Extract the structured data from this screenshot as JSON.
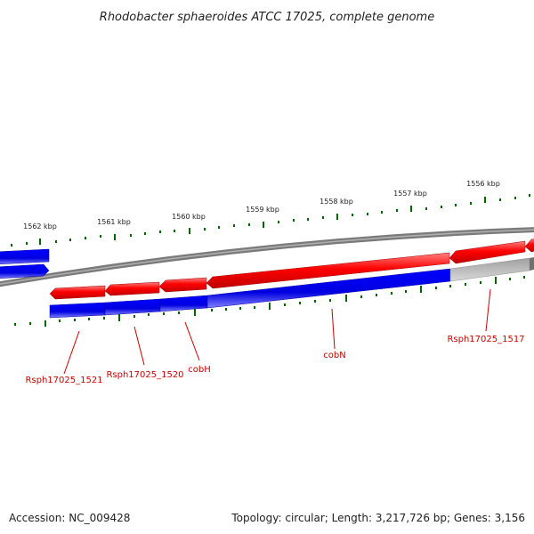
{
  "title": "Rhodobacter sphaeroides ATCC 17025, complete genome",
  "footer": {
    "accession": "Accession: NC_009428",
    "summary": "Topology: circular; Length: 3,217,726 bp; Genes: 3,156"
  },
  "scale": {
    "ticks": [
      {
        "label": "1562 kbp"
      },
      {
        "label": "1561 kbp"
      },
      {
        "label": "1560 kbp"
      },
      {
        "label": "1559 kbp"
      },
      {
        "label": "1558 kbp"
      },
      {
        "label": "1557 kbp"
      },
      {
        "label": "1556 kbp"
      }
    ]
  },
  "genes": [
    {
      "label": "Rsph17025_1521"
    },
    {
      "label": "Rsph17025_1520"
    },
    {
      "label": "cobH"
    },
    {
      "label": "cobN"
    },
    {
      "label": "Rsph17025_1517"
    }
  ],
  "colors": {
    "reverse_strand": "#ff0000",
    "forward_strand": "#0000ff",
    "backbone": "#808080",
    "ticks": "#006600",
    "labels": "#cc0000"
  }
}
